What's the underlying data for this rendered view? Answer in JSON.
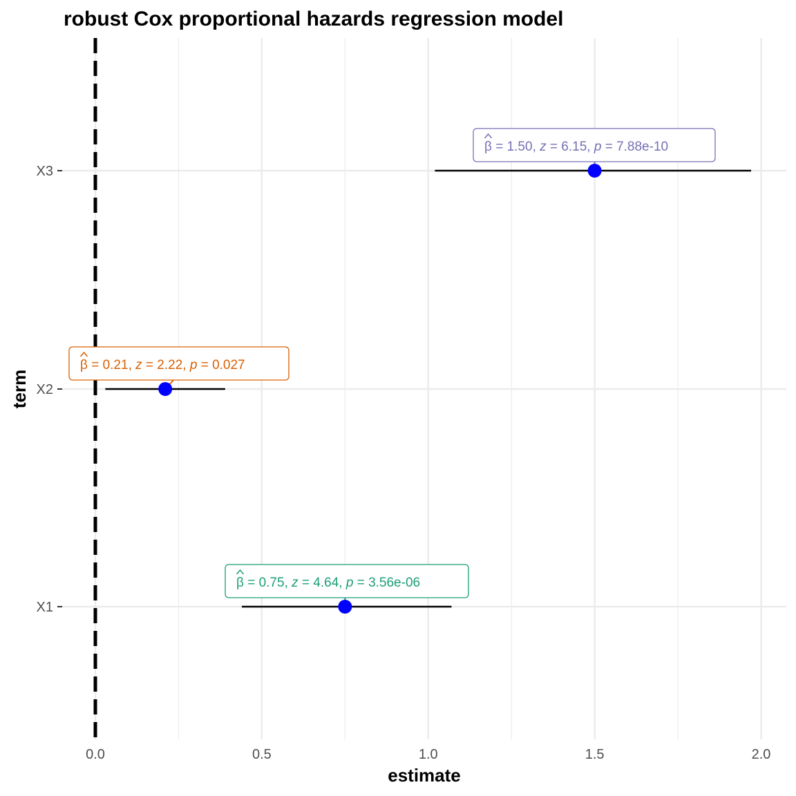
{
  "chart_data": {
    "type": "forest",
    "title": "robust Cox proportional hazards regression model",
    "xlabel": "estimate",
    "ylabel": "term",
    "xlim": [
      -0.05,
      2.08
    ],
    "x_ticks": [
      0.0,
      0.5,
      1.0,
      1.5,
      2.0
    ],
    "x_tick_labels": [
      "0.0",
      "0.5",
      "1.0",
      "1.5",
      "2.0"
    ],
    "grid": true,
    "reference_line": {
      "x": 0,
      "style": "dashed",
      "color": "#000000"
    },
    "point_color": "#0000ff",
    "terms": [
      {
        "term": "X1",
        "estimate": 0.75,
        "conf_low": 0.44,
        "conf_high": 1.07,
        "label": {
          "beta": "0.75",
          "z": "4.64",
          "p": "3.56e-06"
        },
        "label_color": "#1b9e77"
      },
      {
        "term": "X2",
        "estimate": 0.21,
        "conf_low": 0.03,
        "conf_high": 0.39,
        "label": {
          "beta": "0.21",
          "z": "2.22",
          "p": "0.027"
        },
        "label_color": "#d95f02"
      },
      {
        "term": "X3",
        "estimate": 1.5,
        "conf_low": 1.02,
        "conf_high": 1.97,
        "label": {
          "beta": "1.50",
          "z": "6.15",
          "p": "7.88e-10"
        },
        "label_color": "#7570b3"
      }
    ]
  }
}
